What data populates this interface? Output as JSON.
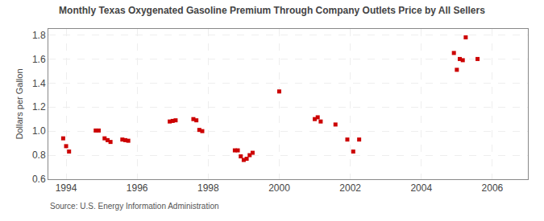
{
  "chart_data": {
    "type": "scatter",
    "title": "Monthly Texas Oxygenated Gasoline Premium Through Company Outlets Price by All Sellers",
    "ylabel": "Dollars per Gallon",
    "annotations": [
      "Source: U.S. Energy Information Administration"
    ],
    "color": "#cc0000",
    "marker": "square",
    "grid": true,
    "xlim": [
      1993.5,
      2007.0
    ],
    "ylim": [
      0.6,
      1.85
    ],
    "xticks": [
      1994,
      1996,
      1998,
      2000,
      2002,
      2004,
      2006
    ],
    "yticks": [
      0.6,
      0.8,
      {
        "value": 1.0,
        "label": "1.0"
      },
      1.2,
      1.4,
      1.6,
      1.8
    ],
    "x": [
      1993.917,
      1994.0,
      1994.083,
      1994.833,
      1994.917,
      1995.083,
      1995.167,
      1995.25,
      1995.583,
      1995.667,
      1995.75,
      1996.917,
      1997.0,
      1997.083,
      1997.583,
      1997.667,
      1997.75,
      1997.833,
      1998.75,
      1998.833,
      1998.917,
      1999.0,
      1999.083,
      1999.167,
      1999.25,
      2000.0,
      2001.0,
      2001.083,
      2001.167,
      2001.583,
      2001.917,
      2002.083,
      2002.25,
      2004.917,
      2005.0,
      2005.083,
      2005.167,
      2005.25,
      2005.583
    ],
    "values": [
      0.94,
      0.875,
      0.83,
      1.005,
      1.005,
      0.94,
      0.925,
      0.91,
      0.93,
      0.925,
      0.92,
      1.08,
      1.085,
      1.09,
      1.1,
      1.09,
      1.01,
      1.0,
      0.84,
      0.84,
      0.79,
      0.76,
      0.77,
      0.8,
      0.82,
      1.33,
      1.1,
      1.115,
      1.08,
      1.055,
      0.93,
      0.83,
      0.93,
      1.65,
      1.51,
      1.6,
      1.59,
      1.78,
      1.6
    ]
  }
}
